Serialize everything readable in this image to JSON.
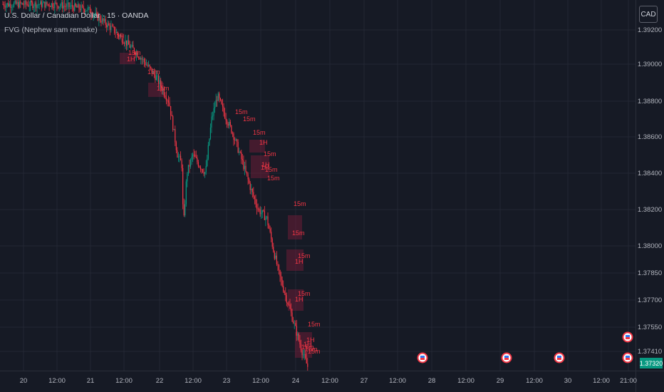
{
  "header": {
    "title": "U.S. Dollar / Canadian Dollar · 15 · OANDA",
    "indicator": "FVG (Nephew sam remake)",
    "currency_button": "CAD"
  },
  "price_tag": "1.37320",
  "colors": {
    "background": "#161a25",
    "up": "#089981",
    "down": "#f23645",
    "fvg_box": "#6b1e37",
    "grid": "#232734"
  },
  "chart_data": {
    "type": "candlestick",
    "title": "U.S. Dollar / Canadian Dollar · 15 · OANDA",
    "y_ticks": [
      "1.39200",
      "1.39000",
      "1.38800",
      "1.38600",
      "1.38400",
      "1.38200",
      "1.38000",
      "1.37850",
      "1.37700",
      "1.37550",
      "1.37410"
    ],
    "x_ticks": [
      "20",
      "12:00",
      "21",
      "12:00",
      "22",
      "12:00",
      "23",
      "12:00",
      "24",
      "12:00",
      "27",
      "12:00",
      "28",
      "12:00",
      "29",
      "12:00",
      "30",
      "12:00",
      "21:00"
    ],
    "last_price": 1.3732,
    "price_path": [
      [
        0,
        1.3935
      ],
      [
        6,
        1.3935
      ],
      [
        10,
        1.3932
      ],
      [
        13,
        1.392
      ],
      [
        16,
        1.3905
      ],
      [
        18,
        1.3893
      ],
      [
        19.5,
        1.388
      ],
      [
        20.5,
        1.385
      ],
      [
        21,
        1.3845
      ],
      [
        21.2,
        1.381
      ],
      [
        21.6,
        1.384
      ],
      [
        22.3,
        1.385
      ],
      [
        23,
        1.3845
      ],
      [
        23.8,
        1.384
      ],
      [
        24.5,
        1.387
      ],
      [
        25.2,
        1.3883
      ],
      [
        26,
        1.3873
      ],
      [
        27,
        1.3862
      ],
      [
        28.2,
        1.3845
      ],
      [
        29.2,
        1.383
      ],
      [
        30,
        1.382
      ],
      [
        31,
        1.3815
      ],
      [
        31.8,
        1.3797
      ],
      [
        32.5,
        1.3783
      ],
      [
        33.5,
        1.3768
      ],
      [
        34.3,
        1.3755
      ],
      [
        35.2,
        1.374
      ],
      [
        35.8,
        1.3732
      ]
    ],
    "fvg_labels": [
      "1H",
      "15m",
      "1H",
      "15m",
      "15m",
      "15m",
      "15m",
      "15m",
      "1H",
      "15m",
      "1H",
      "15m",
      "1H",
      "15m",
      "15m",
      "15m",
      "15m",
      "1H",
      "15m",
      "1H",
      "15m",
      "1H",
      "15m",
      "15m",
      "1H",
      "15m"
    ],
    "grid": true,
    "legend": "top-left"
  }
}
